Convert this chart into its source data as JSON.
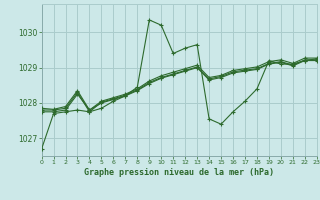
{
  "title": "Graphe pression niveau de la mer (hPa)",
  "bg_color": "#cce8e8",
  "grid_color": "#aacccc",
  "line_color": "#2d6a2d",
  "xlim": [
    0,
    23
  ],
  "ylim": [
    1026.5,
    1030.8
  ],
  "yticks": [
    1027,
    1028,
    1029,
    1030
  ],
  "xticks": [
    0,
    1,
    2,
    3,
    4,
    5,
    6,
    7,
    8,
    9,
    10,
    11,
    12,
    13,
    14,
    15,
    16,
    17,
    18,
    19,
    20,
    21,
    22,
    23
  ],
  "series": [
    [
      1026.7,
      1027.7,
      1027.75,
      1027.8,
      1027.75,
      1027.85,
      1028.05,
      1028.2,
      1028.45,
      1030.35,
      1030.2,
      1029.4,
      1029.55,
      1029.65,
      1027.55,
      1027.4,
      1027.75,
      1028.05,
      1028.4,
      1029.2,
      1029.1,
      1029.1,
      1029.2,
      1029.25
    ],
    [
      1027.75,
      1027.75,
      1027.8,
      1028.25,
      1027.8,
      1028.0,
      1028.1,
      1028.2,
      1028.35,
      1028.55,
      1028.7,
      1028.8,
      1028.9,
      1029.0,
      1028.65,
      1028.72,
      1028.85,
      1028.9,
      1028.95,
      1029.1,
      1029.15,
      1029.05,
      1029.2,
      1029.2
    ],
    [
      1027.8,
      1027.8,
      1027.85,
      1028.3,
      1027.75,
      1028.02,
      1028.12,
      1028.22,
      1028.37,
      1028.58,
      1028.72,
      1028.82,
      1028.92,
      1029.02,
      1028.68,
      1028.75,
      1028.88,
      1028.93,
      1028.97,
      1029.12,
      1029.17,
      1029.07,
      1029.22,
      1029.22
    ],
    [
      1027.85,
      1027.82,
      1027.9,
      1028.35,
      1027.8,
      1028.05,
      1028.15,
      1028.25,
      1028.4,
      1028.62,
      1028.77,
      1028.87,
      1028.97,
      1029.07,
      1028.72,
      1028.78,
      1028.92,
      1028.97,
      1029.02,
      1029.17,
      1029.22,
      1029.12,
      1029.27,
      1029.27
    ]
  ]
}
